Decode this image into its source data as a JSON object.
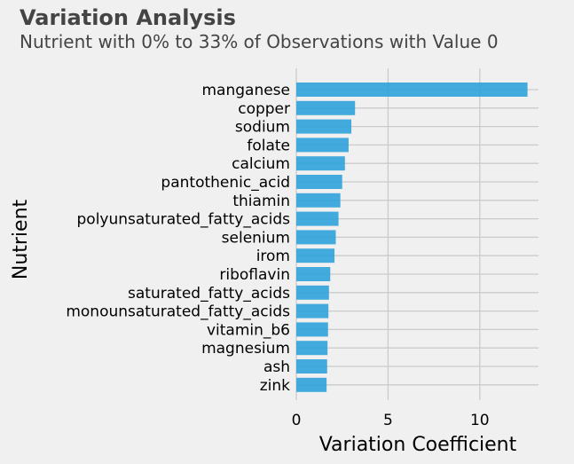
{
  "chart_data": {
    "type": "bar",
    "orientation": "horizontal",
    "title": "Variation Analysis",
    "subtitle": "Nutrient with 0% to 33% of Observations with Value 0",
    "xlabel": "Variation Coefficient",
    "ylabel": "Nutrient",
    "xlim": [
      0,
      13.2
    ],
    "xticks": [
      0,
      5,
      10
    ],
    "grid": true,
    "bar_color": "#30a2da",
    "categories": [
      "manganese",
      "copper",
      "sodium",
      "folate",
      "calcium",
      "pantothenic_acid",
      "thiamin",
      "polyunsaturated_fatty_acids",
      "selenium",
      "irom",
      "riboflavin",
      "saturated_fatty_acids",
      "monounsaturated_fatty_acids",
      "vitamin_b6",
      "magnesium",
      "ash",
      "zink"
    ],
    "values": [
      12.6,
      3.2,
      3.0,
      2.85,
      2.65,
      2.5,
      2.4,
      2.3,
      2.15,
      2.08,
      1.85,
      1.78,
      1.75,
      1.73,
      1.7,
      1.68,
      1.65
    ]
  }
}
